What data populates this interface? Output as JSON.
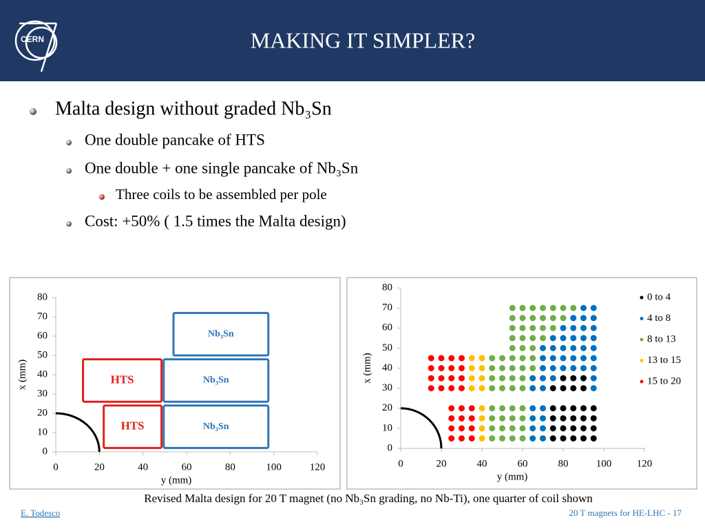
{
  "header": {
    "title": "MAKING IT SIMPLER?",
    "logo": "CERN"
  },
  "bullets": [
    {
      "text": "Malta design without graded Nb₃Sn",
      "level": 1
    },
    {
      "text": "One double pancake of HTS",
      "level": 2
    },
    {
      "text": "One double + one single pancake of Nb₃Sn",
      "level": 2
    },
    {
      "text": "Three coils to be assembled per pole",
      "level": 3
    },
    {
      "text": "Cost: +50% ( 1.5 times the Malta design)",
      "level": 2
    }
  ],
  "chart_data": [
    {
      "type": "coil_layout",
      "xlabel": "y (mm)",
      "ylabel": "x (mm)",
      "xlim": [
        0,
        120
      ],
      "ylim": [
        0,
        80
      ],
      "xticks": [
        0,
        20,
        40,
        60,
        80,
        100,
        120
      ],
      "yticks": [
        0,
        10,
        20,
        30,
        40,
        50,
        60,
        70,
        80
      ],
      "aperture_radius": 20,
      "rects": [
        {
          "label": "HTS",
          "color": "#e0201b",
          "x": [
            22,
            48.5
          ],
          "y": [
            2,
            24
          ]
        },
        {
          "label": "HTS",
          "color": "#e0201b",
          "x": [
            12.5,
            48.5
          ],
          "y": [
            26,
            48
          ]
        },
        {
          "label": "Nb₃Sn",
          "color": "#2e75b6",
          "x": [
            49.5,
            97.5
          ],
          "y": [
            2,
            24
          ]
        },
        {
          "label": "Nb₃Sn",
          "color": "#2e75b6",
          "x": [
            49.5,
            97.5
          ],
          "y": [
            26,
            48
          ]
        },
        {
          "label": "Nb₃Sn",
          "color": "#2e75b6",
          "x": [
            54,
            97.5
          ],
          "y": [
            50,
            72
          ]
        }
      ]
    },
    {
      "type": "scatter",
      "xlabel": "y (mm)",
      "ylabel": "x (mm)",
      "xlim": [
        0,
        120
      ],
      "ylim": [
        0,
        80
      ],
      "xticks": [
        0,
        20,
        40,
        60,
        80,
        100,
        120
      ],
      "yticks": [
        0,
        10,
        20,
        30,
        40,
        50,
        60,
        70,
        80
      ],
      "aperture_radius": 20,
      "series": [
        {
          "name": "0 to 4",
          "color": "#000000",
          "x": [
            75,
            80,
            85,
            90,
            95,
            75,
            80,
            85,
            90,
            95,
            75,
            80,
            85,
            90,
            95,
            75,
            80,
            85,
            90,
            95,
            75,
            80,
            85,
            90,
            80,
            85,
            90
          ],
          "values": [
            5,
            5,
            5,
            5,
            5,
            10,
            10,
            10,
            10,
            10,
            15,
            15,
            15,
            15,
            15,
            20,
            20,
            20,
            20,
            20,
            30,
            30,
            30,
            30,
            35,
            35,
            35
          ]
        },
        {
          "name": "4 to 8",
          "color": "#0070c0",
          "x": [
            65,
            70,
            65,
            70,
            65,
            70,
            65,
            70,
            65,
            70,
            95,
            65,
            70,
            75,
            95,
            70,
            75,
            80,
            85,
            90,
            95,
            70,
            75,
            80,
            85,
            90,
            95,
            70,
            75,
            80,
            85,
            90,
            95,
            75,
            80,
            85,
            90,
            95,
            80,
            85,
            90,
            95,
            85,
            90,
            95,
            90,
            95
          ],
          "values": [
            5,
            5,
            10,
            10,
            15,
            15,
            20,
            20,
            30,
            30,
            30,
            35,
            35,
            35,
            35,
            40,
            40,
            40,
            40,
            40,
            40,
            45,
            45,
            45,
            45,
            45,
            45,
            50,
            50,
            50,
            50,
            50,
            50,
            55,
            55,
            55,
            55,
            55,
            60,
            60,
            60,
            60,
            65,
            65,
            65,
            70,
            70
          ]
        },
        {
          "name": "8 to 13",
          "color": "#70ad47",
          "x": [
            45,
            50,
            55,
            60,
            45,
            50,
            55,
            60,
            45,
            50,
            55,
            60,
            45,
            50,
            55,
            60,
            45,
            50,
            55,
            60,
            45,
            50,
            55,
            60,
            45,
            50,
            55,
            60,
            65,
            45,
            50,
            55,
            60,
            65,
            55,
            60,
            65,
            55,
            60,
            65,
            70,
            55,
            60,
            65,
            70,
            75,
            55,
            60,
            65,
            70,
            75,
            80,
            55,
            60,
            65,
            70,
            75,
            80,
            85
          ],
          "values": [
            5,
            5,
            5,
            5,
            10,
            10,
            10,
            10,
            15,
            15,
            15,
            15,
            20,
            20,
            20,
            20,
            30,
            30,
            30,
            30,
            35,
            35,
            35,
            35,
            40,
            40,
            40,
            40,
            40,
            45,
            45,
            45,
            45,
            45,
            50,
            50,
            50,
            55,
            55,
            55,
            55,
            60,
            60,
            60,
            60,
            60,
            65,
            65,
            65,
            65,
            65,
            65,
            70,
            70,
            70,
            70,
            70,
            70,
            70
          ]
        },
        {
          "name": "13 to 15",
          "color": "#ffc000",
          "x": [
            40,
            40,
            40,
            40,
            35,
            40,
            35,
            40,
            35,
            40,
            35,
            40
          ],
          "values": [
            5,
            10,
            15,
            20,
            30,
            30,
            35,
            35,
            40,
            40,
            45,
            45
          ]
        },
        {
          "name": "15 to 20",
          "color": "#ff0000",
          "x": [
            25,
            30,
            35,
            25,
            30,
            35,
            25,
            30,
            35,
            25,
            30,
            35,
            15,
            20,
            25,
            30,
            15,
            20,
            25,
            30,
            15,
            20,
            25,
            30,
            15,
            20,
            25,
            30
          ],
          "values": [
            5,
            5,
            5,
            10,
            10,
            10,
            15,
            15,
            15,
            20,
            20,
            20,
            30,
            30,
            30,
            30,
            35,
            35,
            35,
            35,
            40,
            40,
            40,
            40,
            45,
            45,
            45,
            45
          ]
        }
      ]
    }
  ],
  "caption": "Revised Malta design for 20 T magnet (no Nb₃Sn grading, no Nb-Ti), one quarter of coil shown",
  "footer": {
    "author": "E. Todesco",
    "page": "20 T magnets for HE-LHC - 17"
  }
}
